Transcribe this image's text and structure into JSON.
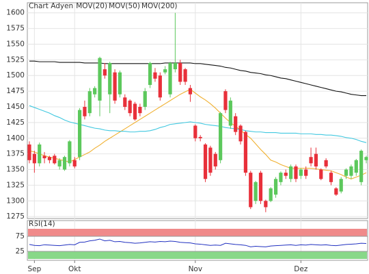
{
  "chart_data": [
    {
      "type": "candlestick",
      "name": "Chart Adyen",
      "name_color": "#e04040",
      "up_color": "#5cc85c",
      "down_color": "#e8303a",
      "categories": [
        null,
        "Sep",
        null,
        null,
        null,
        null,
        null,
        null,
        null,
        "Okt",
        null,
        null,
        null,
        null,
        null,
        null,
        null,
        null,
        null,
        null,
        null,
        null,
        null,
        null,
        null,
        null,
        null,
        null,
        null,
        null,
        null,
        null,
        null,
        "Nov",
        null,
        null,
        null,
        null,
        null,
        null,
        null,
        null,
        null,
        null,
        null,
        null,
        null,
        null,
        null,
        null,
        null,
        null,
        null,
        null,
        "Dez",
        null,
        null,
        null,
        null,
        null,
        null,
        null,
        null,
        null,
        null,
        null,
        null,
        null
      ],
      "open": [
        1390,
        1375,
        1360,
        1372,
        1370,
        1372,
        1355,
        1350,
        1360,
        1365,
        1370,
        1450,
        1440,
        1470,
        1460,
        1510,
        1470,
        1505,
        1470,
        1465,
        1460,
        1455,
        1450,
        1450,
        1485,
        1505,
        1500,
        1505,
        1470,
        1510,
        1520,
        1510,
        1480,
        1420,
        1402,
        1390,
        1385,
        1375,
        1365,
        1475,
        1420,
        1435,
        1420,
        1410,
        1345,
        1300,
        1345,
        1300,
        1300,
        1310,
        1330,
        1345,
        1335,
        1355,
        1340,
        1350,
        1370,
        1375,
        1350,
        1365,
        1345,
        1320,
        1315,
        1340,
        1340,
        1345,
        1330,
        1365
      ],
      "high": [
        1395,
        1380,
        1393,
        1378,
        1372,
        1375,
        1368,
        1372,
        1397,
        1370,
        1448,
        1460,
        1480,
        1483,
        1530,
        1520,
        1522,
        1510,
        1508,
        1470,
        1462,
        1458,
        1455,
        1480,
        1522,
        1512,
        1505,
        1515,
        1522,
        1600,
        1525,
        1512,
        1485,
        1422,
        1405,
        1392,
        1388,
        1378,
        1442,
        1478,
        1465,
        1440,
        1422,
        1412,
        1348,
        1332,
        1348,
        1302,
        1322,
        1338,
        1347,
        1350,
        1358,
        1358,
        1352,
        1355,
        1385,
        1385,
        1352,
        1368,
        1348,
        1322,
        1338,
        1352,
        1358,
        1367,
        1382,
        1372
      ],
      "low": [
        1360,
        1345,
        1355,
        1360,
        1360,
        1358,
        1350,
        1348,
        1355,
        1352,
        1365,
        1430,
        1435,
        1465,
        1435,
        1495,
        1440,
        1455,
        1465,
        1445,
        1435,
        1428,
        1435,
        1445,
        1480,
        1490,
        1460,
        1502,
        1465,
        1505,
        1485,
        1485,
        1458,
        1395,
        1395,
        1330,
        1340,
        1350,
        1360,
        1440,
        1415,
        1405,
        1390,
        1340,
        1287,
        1295,
        1295,
        1282,
        1298,
        1305,
        1325,
        1335,
        1330,
        1330,
        1335,
        1335,
        1355,
        1350,
        1333,
        1352,
        1325,
        1308,
        1312,
        1335,
        1335,
        1340,
        1325,
        1360
      ],
      "close": [
        1365,
        1360,
        1390,
        1368,
        1365,
        1360,
        1365,
        1370,
        1395,
        1355,
        1445,
        1435,
        1475,
        1480,
        1528,
        1500,
        1520,
        1460,
        1505,
        1450,
        1440,
        1430,
        1440,
        1475,
        1520,
        1495,
        1465,
        1510,
        1520,
        1520,
        1490,
        1490,
        1470,
        1400,
        1400,
        1335,
        1345,
        1355,
        1440,
        1445,
        1460,
        1410,
        1395,
        1345,
        1290,
        1330,
        1300,
        1290,
        1320,
        1335,
        1345,
        1340,
        1355,
        1335,
        1350,
        1340,
        1360,
        1355,
        1335,
        1355,
        1330,
        1310,
        1335,
        1350,
        1355,
        1365,
        1380,
        1370
      ],
      "series": [
        {
          "name": "MOV(20)",
          "color": "#f0b030",
          "values": [
            1380,
            1378,
            1375,
            1372,
            1370,
            1368,
            1366,
            1364,
            1362,
            1366,
            1370,
            1374,
            1378,
            1384,
            1389,
            1395,
            1400,
            1405,
            1410,
            1415,
            1420,
            1425,
            1430,
            1435,
            1440,
            1445,
            1450,
            1455,
            1460,
            1465,
            1470,
            1474,
            1478,
            1472,
            1466,
            1461,
            1455,
            1448,
            1440,
            1432,
            1425,
            1419,
            1413,
            1406,
            1400,
            1391,
            1382,
            1374,
            1365,
            1362,
            1358,
            1355,
            1352,
            1352,
            1352,
            1352,
            1352,
            1351,
            1350,
            1349,
            1348,
            1345,
            1342,
            1338,
            1335,
            1338,
            1341,
            1345
          ]
        },
        {
          "name": "MOV(50)",
          "color": "#40c8e0",
          "values": [
            1452,
            1449,
            1446,
            1443,
            1440,
            1436,
            1433,
            1429,
            1426,
            1424,
            1422,
            1420,
            1418,
            1416,
            1415,
            1413,
            1412,
            1412,
            1411,
            1411,
            1410,
            1410,
            1411,
            1411,
            1412,
            1414,
            1417,
            1419,
            1422,
            1423,
            1424,
            1425,
            1426,
            1425,
            1424,
            1422,
            1421,
            1420,
            1419,
            1417,
            1416,
            1415,
            1414,
            1412,
            1411,
            1410,
            1410,
            1409,
            1409,
            1409,
            1408,
            1408,
            1408,
            1408,
            1407,
            1407,
            1407,
            1406,
            1406,
            1405,
            1405,
            1404,
            1403,
            1401,
            1400,
            1398,
            1395,
            1393
          ]
        },
        {
          "name": "MOV(200)",
          "color": "#111111",
          "values": [
            1523,
            1523,
            1522,
            1522,
            1522,
            1522,
            1521,
            1521,
            1521,
            1521,
            1521,
            1520,
            1520,
            1520,
            1520,
            1519,
            1519,
            1519,
            1519,
            1519,
            1519,
            1519,
            1519,
            1519,
            1519,
            1519,
            1519,
            1520,
            1520,
            1520,
            1520,
            1520,
            1520,
            1519,
            1519,
            1518,
            1517,
            1516,
            1515,
            1513,
            1512,
            1510,
            1508,
            1507,
            1505,
            1504,
            1503,
            1501,
            1500,
            1498,
            1496,
            1495,
            1493,
            1491,
            1489,
            1487,
            1485,
            1483,
            1481,
            1479,
            1477,
            1475,
            1474,
            1472,
            1470,
            1469,
            1468,
            1468
          ]
        }
      ],
      "ylim": [
        1273,
        1615
      ],
      "yticks": [
        1275,
        1300,
        1325,
        1350,
        1375,
        1400,
        1425,
        1450,
        1475,
        1500,
        1525,
        1550,
        1575,
        1600
      ],
      "grid": true
    },
    {
      "type": "line",
      "title": "RSI(14)",
      "series": [
        {
          "color": "#2030c0",
          "values": [
            48,
            45,
            44,
            47,
            46,
            45,
            44,
            46,
            48,
            47,
            55,
            56,
            60,
            62,
            66,
            60,
            62,
            57,
            58,
            55,
            54,
            52,
            53,
            55,
            57,
            56,
            58,
            57,
            59,
            58,
            55,
            54,
            53,
            50,
            49,
            47,
            45,
            46,
            45,
            52,
            50,
            48,
            47,
            45,
            40,
            42,
            41,
            40,
            43,
            44,
            45,
            46,
            47,
            45,
            47,
            46,
            48,
            47,
            46,
            47,
            45,
            44,
            46,
            48,
            49,
            50,
            52,
            51
          ]
        }
      ],
      "ylim": [
        0,
        100
      ],
      "yticks": [
        25,
        75
      ],
      "band_colors": [
        "#88d888",
        "#f08a8a"
      ]
    }
  ]
}
